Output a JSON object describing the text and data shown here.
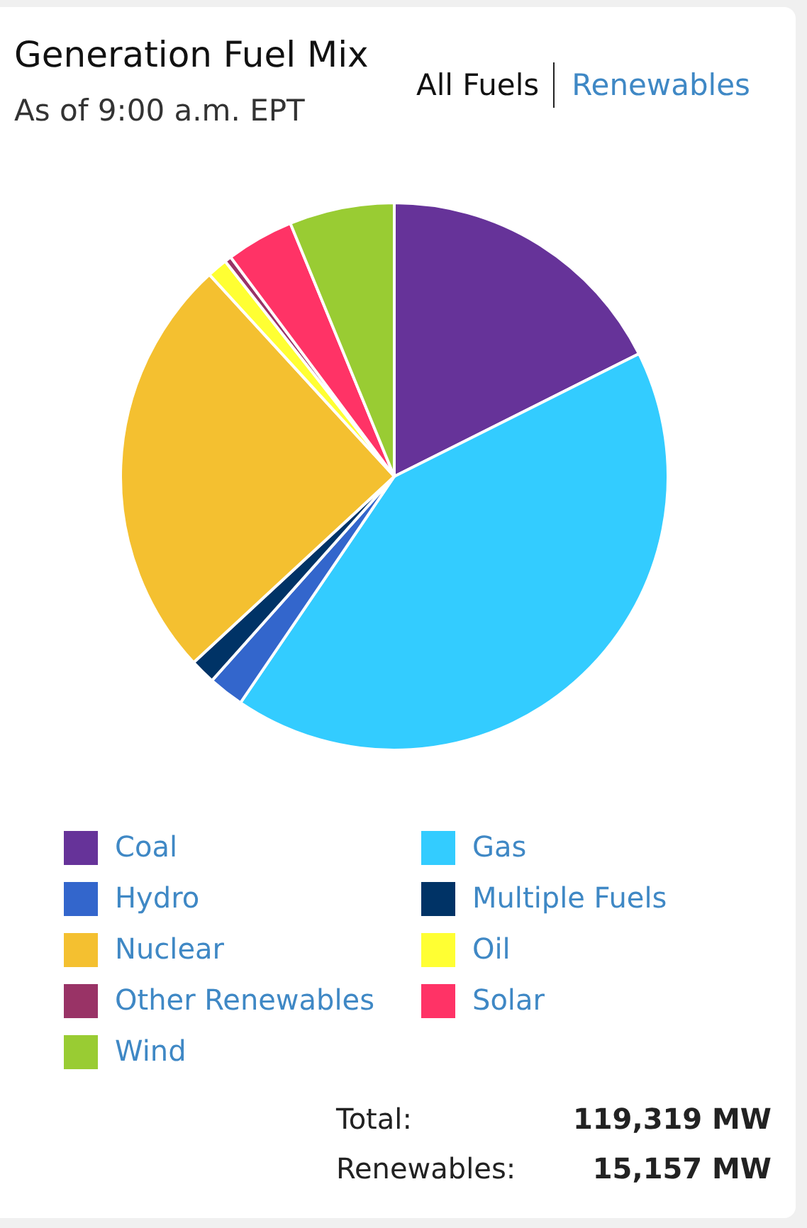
{
  "chart_data": {
    "type": "pie",
    "title": "Generation Fuel Mix",
    "subtitle": "As of 9:00 a.m. EPT",
    "categories": [
      "Coal",
      "Gas",
      "Hydro",
      "Multiple Fuels",
      "Nuclear",
      "Oil",
      "Other Renewables",
      "Solar",
      "Wind"
    ],
    "values": [
      17.6,
      41.9,
      2.1,
      1.5,
      25.1,
      1.2,
      0.4,
      4.0,
      6.2
    ],
    "colors": [
      "#663399",
      "#33ccff",
      "#3366cc",
      "#003366",
      "#f4c030",
      "#ffff33",
      "#993366",
      "#ff3366",
      "#99cc33"
    ],
    "legend": "bottom",
    "annotations": [
      "All Fuels",
      "Renewables",
      "Total: 119,319 MW",
      "Renewables: 15,157 MW"
    ]
  }
}
